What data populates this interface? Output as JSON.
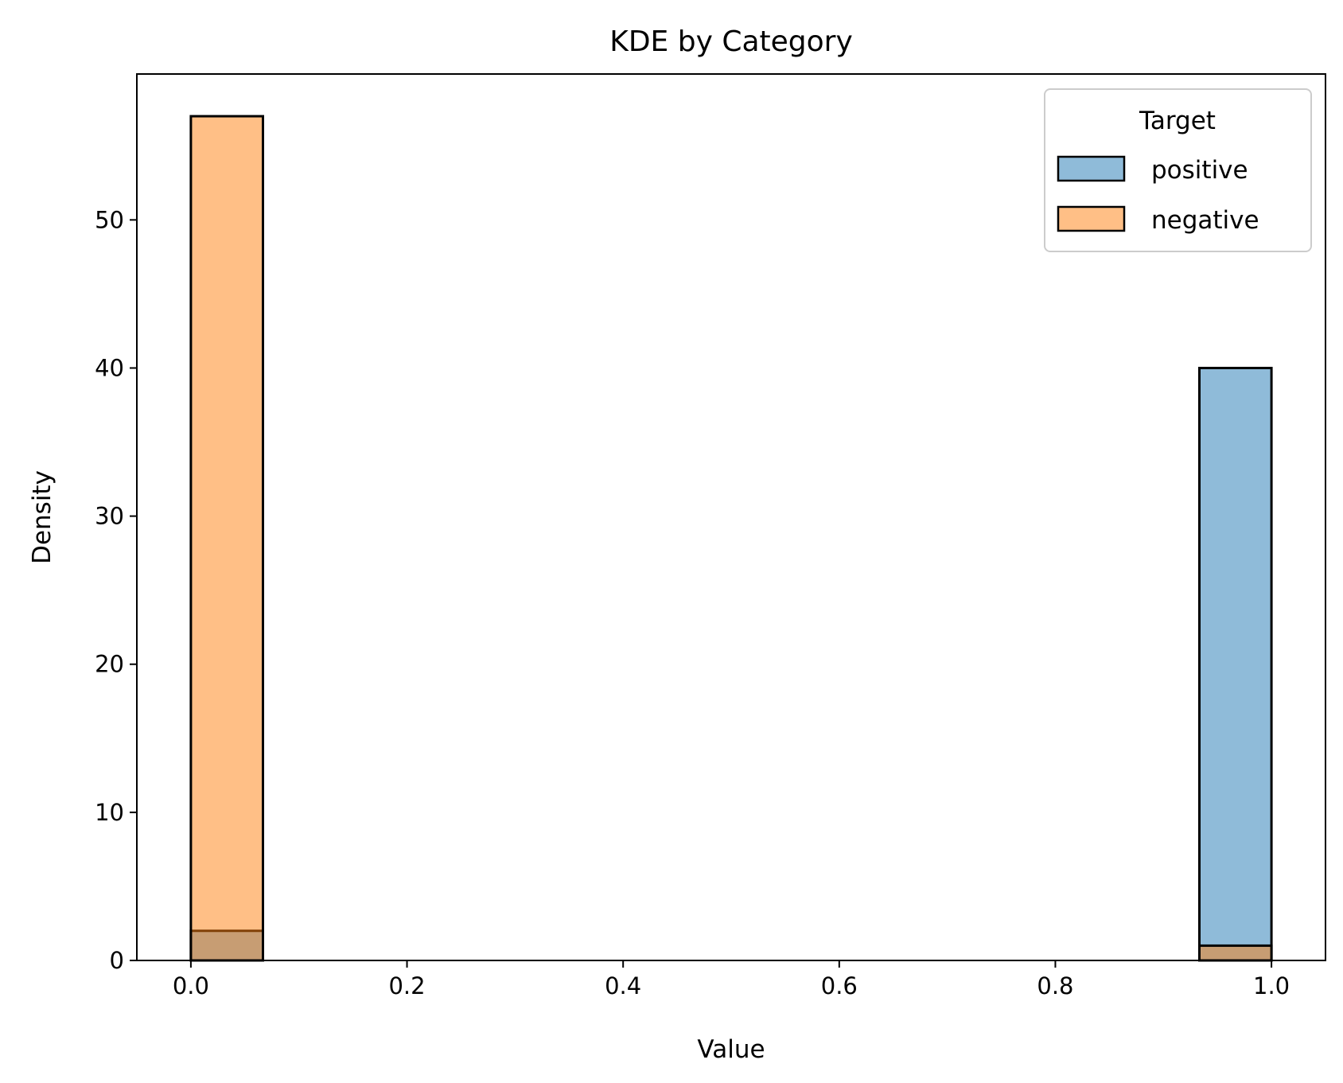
{
  "chart_data": {
    "type": "bar",
    "title": "KDE by Category",
    "xlabel": "Value",
    "ylabel": "Density",
    "xlim": [
      -0.05,
      1.05
    ],
    "ylim": [
      0,
      59.85
    ],
    "xticks": [
      0.0,
      0.2,
      0.4,
      0.6,
      0.8,
      1.0
    ],
    "xtick_labels": [
      "0.0",
      "0.2",
      "0.4",
      "0.6",
      "0.8",
      "1.0"
    ],
    "yticks": [
      0,
      10,
      20,
      30,
      40,
      50
    ],
    "ytick_labels": [
      "0",
      "10",
      "20",
      "30",
      "40",
      "50"
    ],
    "bin_width": 0.0667,
    "legend": {
      "title": "Target",
      "placement": "top-right"
    },
    "series": [
      {
        "name": "positive",
        "color": "#1f77b4",
        "bins": [
          {
            "x0": 0.0,
            "x1": 0.0667,
            "value": 2
          },
          {
            "x0": 0.9333,
            "x1": 1.0,
            "value": 40
          }
        ]
      },
      {
        "name": "negative",
        "color": "#ff7f0e",
        "bins": [
          {
            "x0": 0.0,
            "x1": 0.0667,
            "value": 57
          },
          {
            "x0": 0.9333,
            "x1": 1.0,
            "value": 1
          }
        ]
      }
    ],
    "grid": false
  }
}
